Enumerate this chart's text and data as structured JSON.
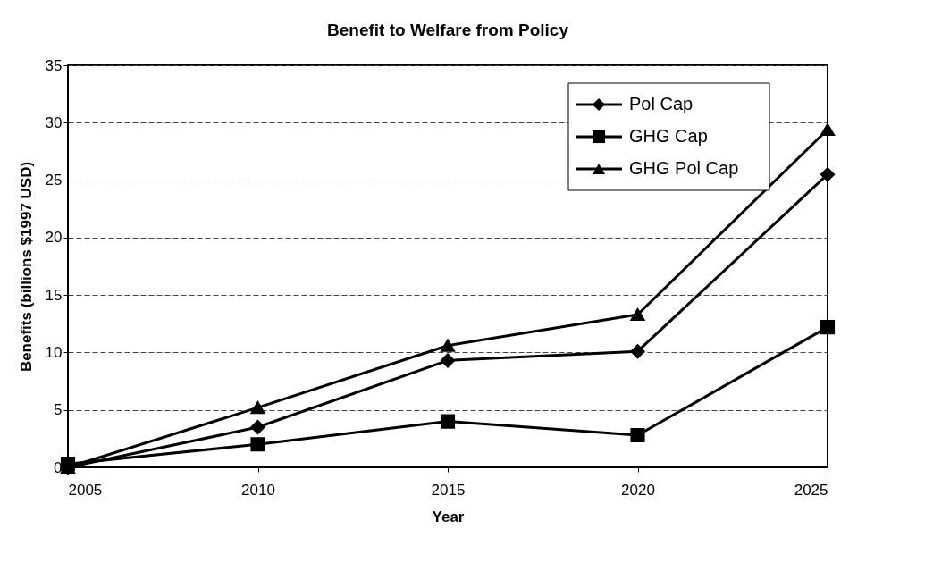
{
  "chart_data": {
    "type": "line",
    "title": "Benefit to Welfare from Policy",
    "xlabel": "Year",
    "ylabel": "Benefits (billions $1997 USD)",
    "x": [
      2005,
      2010,
      2015,
      2020,
      2025
    ],
    "series": [
      {
        "name": "Pol Cap",
        "color": "#000000",
        "marker": "diamond",
        "values": [
          0,
          3.5,
          9.3,
          10.1,
          25.5
        ]
      },
      {
        "name": "GHG Cap",
        "color": "#000000",
        "marker": "square",
        "values": [
          0.3,
          2.0,
          4.0,
          2.8,
          12.2
        ]
      },
      {
        "name": "GHG Pol Cap",
        "color": "#000000",
        "marker": "triangle",
        "values": [
          0,
          5.2,
          10.6,
          13.3,
          29.4
        ]
      }
    ],
    "xlim": [
      2005,
      2025
    ],
    "xticks": [
      2005,
      2010,
      2015,
      2020,
      2025
    ],
    "ylim": [
      0,
      35
    ],
    "yticks": [
      0,
      5,
      10,
      15,
      20,
      25,
      30,
      35
    ],
    "grid": "y",
    "legend": "top right",
    "line_style": "solid"
  }
}
